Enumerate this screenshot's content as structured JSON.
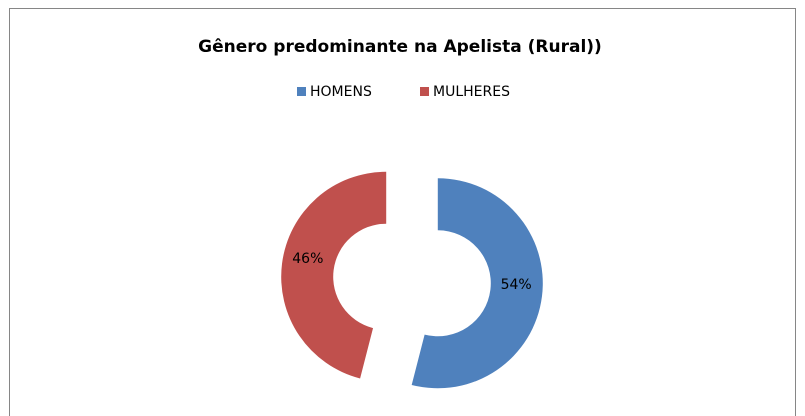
{
  "chart_data": {
    "type": "donut",
    "title": "Gênero predominante  na Apelista (Rural))",
    "categories": [
      "HOMENS",
      "MULHERES"
    ],
    "values": [
      54,
      46
    ],
    "value_labels": [
      "54%",
      "46%"
    ],
    "colors": [
      "#4f81bd",
      "#c0504d"
    ],
    "legend": "top"
  }
}
